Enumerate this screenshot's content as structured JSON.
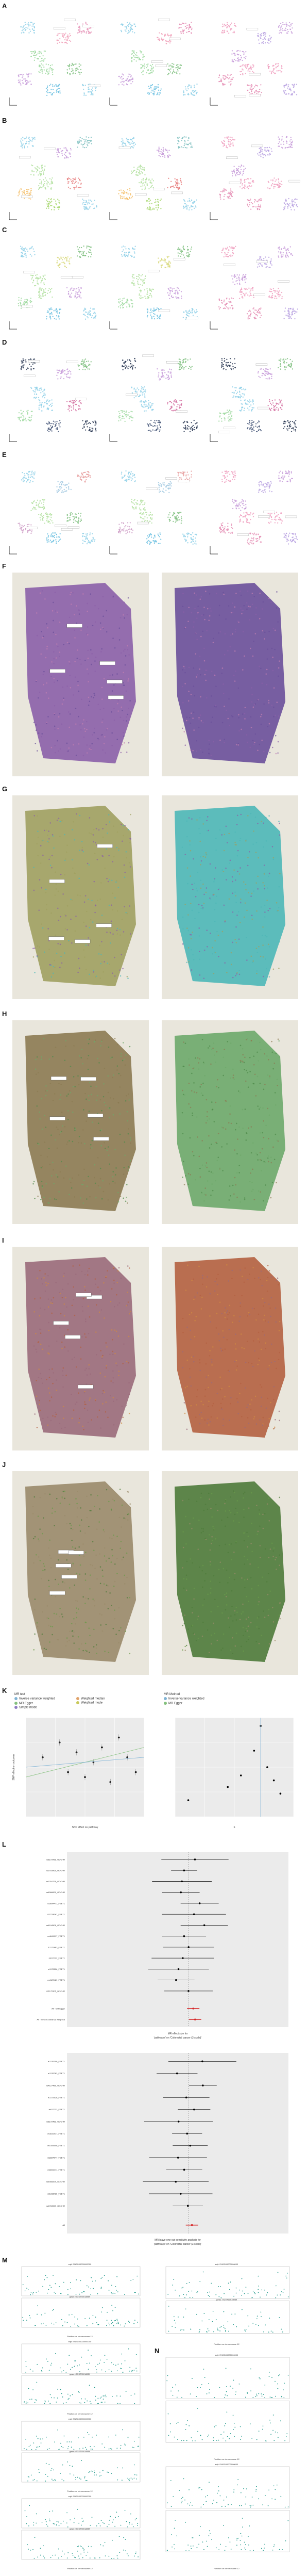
{
  "panel_labels": [
    "A",
    "B",
    "C",
    "D",
    "E",
    "F",
    "G",
    "H",
    "I",
    "J",
    "K",
    "L",
    "M",
    "N"
  ],
  "panel_k": {
    "legend_left": {
      "title": "MR test",
      "items": [
        "Inverse variance weighted",
        "MR Egger",
        "Simple mode",
        "Weighted median",
        "Weighted mode"
      ],
      "colors": [
        "#7fb3d5",
        "#85c17e",
        "#8e7cc3",
        "#e0a36b",
        "#c9c95a"
      ]
    },
    "legend_right": {
      "title": "MR Method",
      "items": [
        "Inverse variance weighted",
        "MR Egger"
      ],
      "colors": [
        "#7fb3d5",
        "#85c17e"
      ]
    },
    "xlabel_left": "SNP effect on pathway",
    "ylabel_left": "SNP effect on outcome",
    "xlabel_right": "b",
    "chart_data": [
      {
        "type": "scatter",
        "title": "",
        "x": [
          -0.3,
          -0.2,
          -0.15,
          -0.1,
          -0.05,
          0.0,
          0.05,
          0.1,
          0.15,
          0.2,
          0.25
        ],
        "y": [
          0.02,
          0.05,
          -0.01,
          0.03,
          -0.02,
          0.01,
          0.04,
          -0.03,
          0.06,
          0.02,
          -0.01
        ],
        "xlim": [
          -0.4,
          0.3
        ],
        "ylim": [
          -0.1,
          0.1
        ]
      },
      {
        "type": "scatter",
        "title": "",
        "x": [
          -0.5,
          -0.2,
          -0.1,
          0.0,
          0.05,
          0.1,
          0.15,
          0.2
        ],
        "y": [
          10,
          18,
          25,
          40,
          55,
          30,
          22,
          14
        ],
        "xlim": [
          -0.6,
          0.3
        ],
        "ylim": [
          0,
          60
        ]
      }
    ]
  },
  "panel_l": {
    "top": {
      "xlabel": "MR effect size for",
      "subtitle": "'pathways' on 'Colorectal cancer (3 scale)'",
      "snps": [
        "rs1173781_GGCHR",
        "rs1763969_GGCHR",
        "rs1316726_GGCHR",
        "rs4566829_GGCHR",
        "rs5694471_FSET1",
        "rs2224047_FSET1",
        "rs4194506_GGCHR",
        "rs4641917_FSET1",
        "rs1172483_FSET1",
        "rs617732_FSET1",
        "rs1173526_FSET1",
        "rs4127489_FSET1",
        "rs1176306_GGCHR"
      ],
      "summary": [
        "All - MR Egger",
        "All - Inverse variance weighted"
      ]
    },
    "bottom": {
      "xlabel": "MR leave-one-out sensitivity analysis for",
      "subtitle": "'pathways' on 'Colorectal cancer (3 scale)'",
      "snps": [
        "rs1176306_FSET1",
        "rs1176783_FSET1",
        "rs4127489_GGCHR",
        "rs1173526_FSET1",
        "rs617732_FSET1",
        "rs1172483_GGCHR",
        "rs4641917_FSET1",
        "rs4194506_FSET1",
        "rs2224047_FSET1",
        "rs5694471_FSET1",
        "rs4566829_GGCHR",
        "rs1316726_FSET1",
        "rs1763969_GGCHR"
      ],
      "summary": [
        "All"
      ]
    }
  },
  "panel_m": {
    "titles": [
      "eqtl: ENSG00000000000",
      "eqtl: ENSG00000000000",
      "eqtl: ENSG00000000000",
      "eqtl: ENSG00000000000"
    ],
    "subtitles": [
      "gwas: GCST90018859",
      "gwas: GCST90018859",
      "gwas: GCST90018859"
    ],
    "xlabel": "Position on chromosome 12"
  },
  "panel_n": {
    "titles": [
      "eqtl: ENSG00000000000",
      "eqtl: ENSG00000000000"
    ],
    "xlabel": "Position on chromosome 12"
  }
}
